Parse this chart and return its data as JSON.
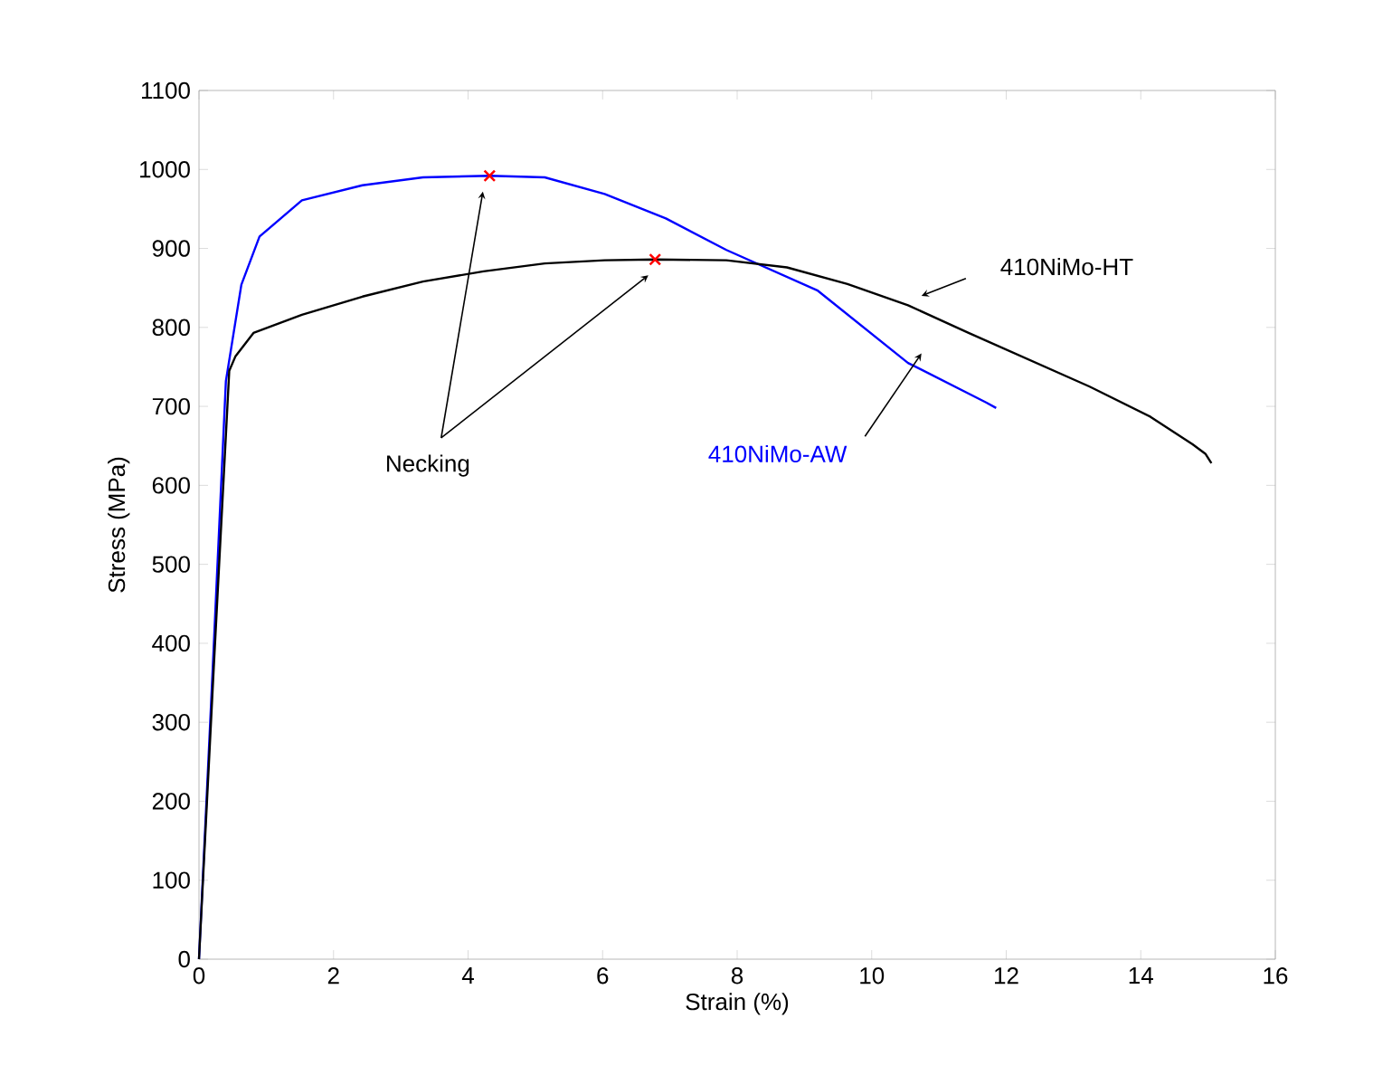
{
  "chart_data": {
    "type": "line",
    "xlabel": "Strain (%)",
    "ylabel": "Stress (MPa)",
    "xlim": [
      0,
      16
    ],
    "xticks": [
      0,
      2,
      4,
      6,
      8,
      10,
      12,
      14,
      16
    ],
    "ylim": [
      0,
      1100
    ],
    "yticks": [
      0,
      100,
      200,
      300,
      400,
      500,
      600,
      700,
      800,
      900,
      1000,
      1100
    ],
    "grid": false,
    "marker": "none",
    "line_style": "solid",
    "annotations": [
      "Necking"
    ],
    "series": [
      {
        "name": "410NiMo-AW",
        "color": "#0000ff",
        "x": [
          0,
          0.2,
          0.4,
          0.63,
          0.9,
          1.53,
          2.43,
          3.33,
          4.32,
          5.14,
          6.03,
          6.94,
          7.84,
          9.19,
          10.54,
          11.7,
          11.85
        ],
        "values": [
          0,
          360,
          732,
          854,
          915,
          961,
          980,
          990,
          992,
          990,
          969,
          938,
          898,
          847,
          755,
          705,
          698
        ]
      },
      {
        "name": "410NiMo-HT",
        "color": "#000000",
        "x": [
          0,
          0.22,
          0.45,
          0.54,
          0.81,
          1.53,
          2.43,
          3.33,
          4.23,
          5.14,
          6.03,
          6.78,
          7.84,
          8.74,
          9.64,
          10.54,
          11.44,
          12.34,
          13.24,
          14.14,
          14.77,
          14.96,
          15.05
        ],
        "values": [
          0,
          370,
          745,
          763,
          793,
          816,
          839,
          858,
          871,
          881,
          885,
          886,
          885,
          876,
          855,
          828,
          793,
          759,
          725,
          687,
          652,
          640,
          628
        ]
      },
      {
        "type": "scatter",
        "marker": "cross",
        "color": "#ff0000",
        "x": [
          4.32,
          6.78
        ],
        "values": [
          992,
          886
        ]
      }
    ]
  }
}
